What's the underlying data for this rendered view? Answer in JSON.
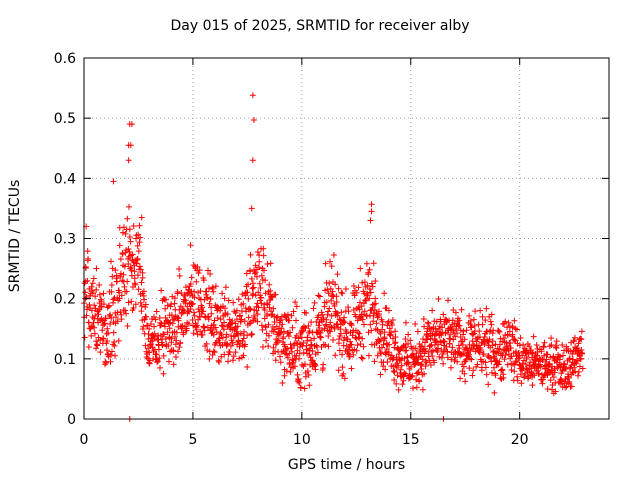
{
  "chart_data": {
    "type": "scatter",
    "title": "Day 015 of 2025, SRMTID for receiver alby",
    "xlabel": "GPS time / hours",
    "ylabel": "SRMTID / TECUs",
    "xlim": [
      0,
      24.1
    ],
    "ylim": [
      0,
      0.6
    ],
    "x_ticks": [
      0,
      5,
      10,
      15,
      20
    ],
    "y_ticks": [
      0,
      0.1,
      0.2,
      0.3,
      0.4,
      0.5,
      0.6
    ],
    "y_tick_labels": [
      "0",
      "0.1",
      "0.2",
      "0.3",
      "0.4",
      "0.5",
      "0.6"
    ],
    "grid": true,
    "marker": "+",
    "color": "#ff0000",
    "x_range_of_data": [
      0,
      22.9
    ],
    "outliers": [
      {
        "x": 2.1,
        "y": 0.49
      },
      {
        "x": 2.2,
        "y": 0.49
      },
      {
        "x": 2.05,
        "y": 0.455
      },
      {
        "x": 2.15,
        "y": 0.455
      },
      {
        "x": 2.05,
        "y": 0.43
      },
      {
        "x": 1.35,
        "y": 0.395
      },
      {
        "x": 7.75,
        "y": 0.538
      },
      {
        "x": 7.8,
        "y": 0.497
      },
      {
        "x": 7.75,
        "y": 0.43
      },
      {
        "x": 7.7,
        "y": 0.35
      },
      {
        "x": 13.2,
        "y": 0.357
      },
      {
        "x": 13.2,
        "y": 0.345
      },
      {
        "x": 13.15,
        "y": 0.33
      },
      {
        "x": 2.1,
        "y": 0.0
      },
      {
        "x": 16.5,
        "y": 0.0
      },
      {
        "x": 0.1,
        "y": 0.32
      },
      {
        "x": 2.65,
        "y": 0.335
      }
    ],
    "series_envelope": {
      "x": [
        0,
        0.5,
        1,
        1.5,
        2,
        2.5,
        3,
        3.5,
        4,
        4.5,
        5,
        5.5,
        6,
        6.5,
        7,
        7.5,
        8,
        8.5,
        9,
        9.5,
        10,
        10.5,
        11,
        11.5,
        12,
        12.5,
        13,
        13.5,
        14,
        14.5,
        15,
        15.5,
        16,
        16.5,
        17,
        17.5,
        18,
        18.5,
        19,
        19.5,
        20,
        20.5,
        21,
        21.5,
        22,
        22.5,
        22.9
      ],
      "center": [
        0.2,
        0.19,
        0.14,
        0.2,
        0.25,
        0.27,
        0.11,
        0.14,
        0.15,
        0.17,
        0.2,
        0.19,
        0.15,
        0.16,
        0.15,
        0.17,
        0.22,
        0.18,
        0.14,
        0.12,
        0.11,
        0.13,
        0.16,
        0.18,
        0.14,
        0.16,
        0.2,
        0.16,
        0.13,
        0.1,
        0.09,
        0.11,
        0.13,
        0.13,
        0.13,
        0.12,
        0.12,
        0.12,
        0.11,
        0.13,
        0.1,
        0.09,
        0.09,
        0.09,
        0.08,
        0.1,
        0.12
      ],
      "spread": [
        0.07,
        0.06,
        0.05,
        0.06,
        0.08,
        0.05,
        0.04,
        0.05,
        0.05,
        0.05,
        0.06,
        0.05,
        0.05,
        0.05,
        0.05,
        0.06,
        0.07,
        0.06,
        0.05,
        0.05,
        0.05,
        0.05,
        0.06,
        0.06,
        0.05,
        0.05,
        0.06,
        0.05,
        0.04,
        0.04,
        0.04,
        0.04,
        0.04,
        0.04,
        0.04,
        0.04,
        0.04,
        0.04,
        0.04,
        0.04,
        0.03,
        0.03,
        0.03,
        0.03,
        0.03,
        0.03,
        0.03
      ]
    }
  }
}
